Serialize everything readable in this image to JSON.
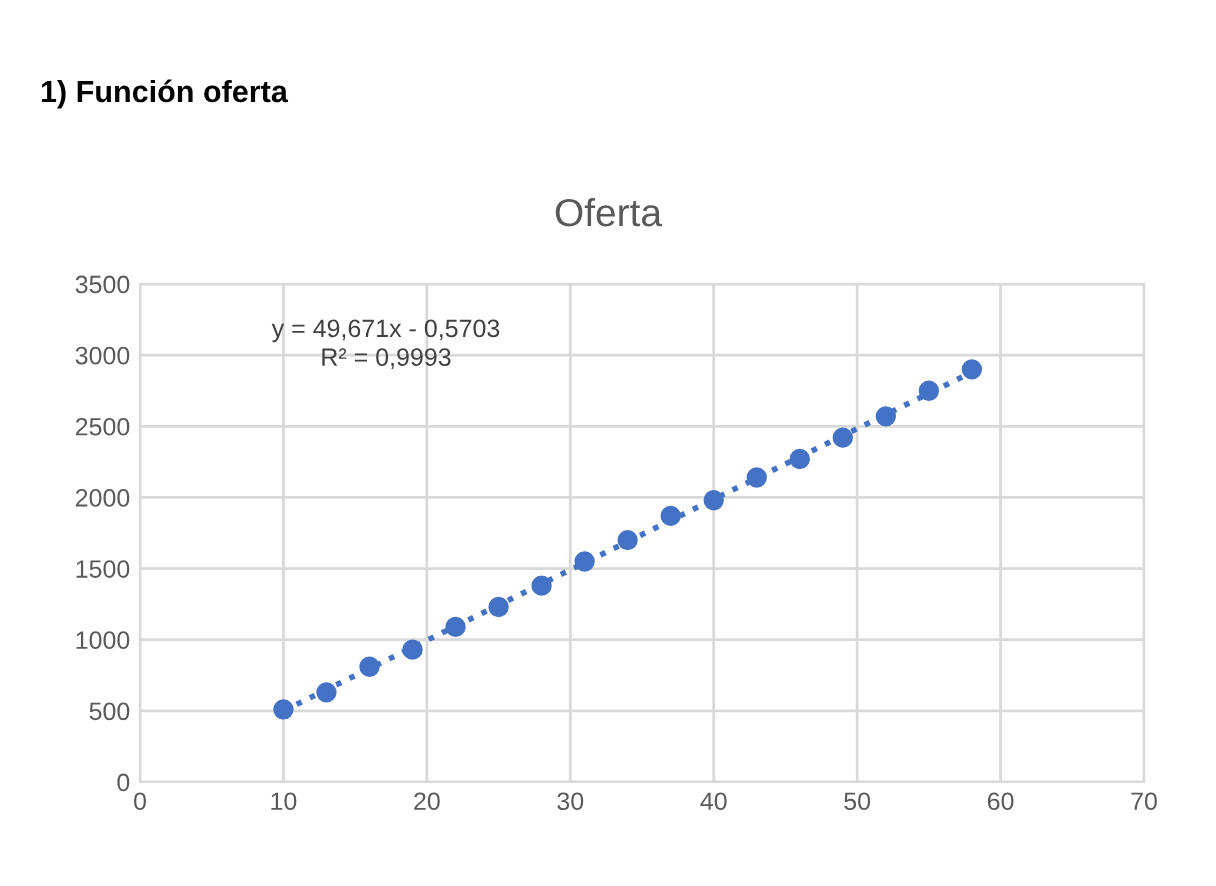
{
  "chart_data": {
    "type": "scatter",
    "title": "Oferta",
    "annotations": [
      "1) Función oferta",
      "y = 49,671x - 0,5703\nR² = 0,9993"
    ],
    "xlim": [
      0,
      70
    ],
    "xticks": [
      0,
      10,
      20,
      30,
      40,
      50,
      60,
      70
    ],
    "ylim": [
      0,
      3500
    ],
    "yticks": [
      0,
      500,
      1000,
      1500,
      2000,
      2500,
      3000,
      3500
    ],
    "grid": true,
    "series": [
      {
        "marker": "circle",
        "color": "#4472c4",
        "x": [
          10,
          13,
          16,
          19,
          22,
          25,
          28,
          31,
          34,
          37,
          40,
          43,
          46,
          49,
          52,
          55,
          58
        ],
        "values": [
          510,
          630,
          810,
          930,
          1090,
          1230,
          1380,
          1550,
          1700,
          1870,
          1980,
          2140,
          2270,
          2420,
          2570,
          2750,
          2900
        ]
      },
      {
        "type": "line",
        "color": "#4472c4",
        "line_style": "dotted",
        "x": [
          10,
          58
        ],
        "values": [
          500,
          2880
        ]
      }
    ]
  }
}
